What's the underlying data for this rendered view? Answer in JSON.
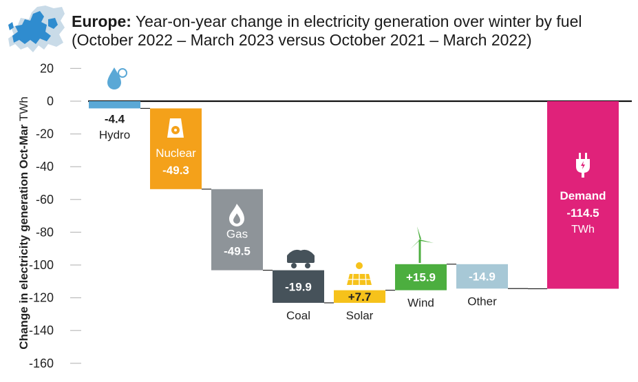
{
  "header": {
    "region": "Europe:",
    "title": "Year-on-year change in electricity generation over winter by fuel (October 2022 – March 2023 versus October 2021 – March 2022)"
  },
  "chart_data": {
    "type": "waterfall",
    "ylabel": "Change in electricity generation Oct-Mar",
    "yunit": "TWh",
    "ylim": [
      -160,
      20
    ],
    "yticks": [
      20,
      0,
      -20,
      -40,
      -60,
      -80,
      -100,
      -120,
      -140,
      -160
    ],
    "grid": false,
    "steps": [
      {
        "name": "Hydro",
        "value": -4.4,
        "label": "-4.4",
        "color": "#5aa8d6",
        "icon": "water-drop-icon"
      },
      {
        "name": "Nuclear",
        "value": -49.3,
        "label": "-49.3",
        "color": "#f4a11a",
        "icon": "nuclear-icon"
      },
      {
        "name": "Gas",
        "value": -49.5,
        "label": "-49.5",
        "color": "#8e9499",
        "icon": "gas-flame-icon"
      },
      {
        "name": "Coal",
        "value": -19.9,
        "label": "-19.9",
        "color": "#46525a",
        "icon": "coal-cart-icon"
      },
      {
        "name": "Solar",
        "value": 7.7,
        "label": "+7.7",
        "color": "#f6c21b",
        "icon": "solar-panel-icon"
      },
      {
        "name": "Wind",
        "value": 15.9,
        "label": "+15.9",
        "color": "#4cae3f",
        "icon": "wind-turbine-icon"
      },
      {
        "name": "Other",
        "value": -14.9,
        "label": "-14.9",
        "color": "#a7c8d6",
        "icon": ""
      }
    ],
    "total": {
      "name": "Demand",
      "value": -114.5,
      "label": "-114.5",
      "unit": "TWh",
      "color": "#e0227a",
      "icon": "power-plug-icon"
    }
  }
}
